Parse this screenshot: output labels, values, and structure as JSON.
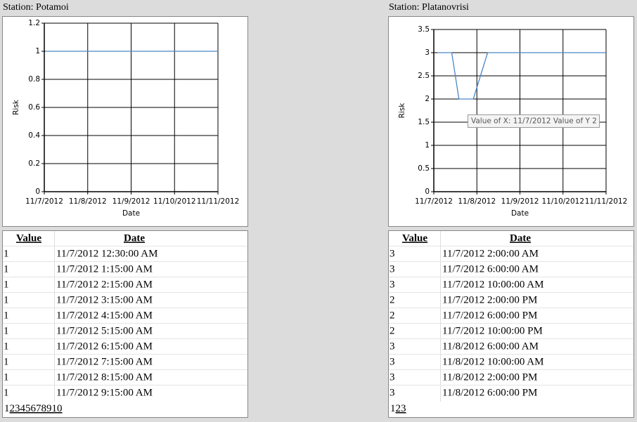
{
  "stations": [
    "Station: Potamoi",
    "Station: Platanovrisi"
  ],
  "chart_data": [
    {
      "type": "line",
      "xlabel": "Date",
      "ylabel": "Risk",
      "x": [
        "11/7/2012 12:30:00 AM",
        "11/11/2012"
      ],
      "values": [
        1,
        1
      ],
      "color": "#4a86c8",
      "xlim": [
        "11/7/2012",
        "11/11/2012"
      ],
      "xticks": [
        "11/7/2012",
        "11/8/2012",
        "11/9/2012",
        "11/10/2012",
        "11/11/2012"
      ],
      "ylim": [
        0,
        1.2
      ],
      "yticks": [
        0,
        0.2,
        0.4,
        0.6,
        0.8,
        1,
        1.2
      ],
      "grid": true
    },
    {
      "type": "line",
      "xlabel": "Date",
      "ylabel": "Risk",
      "x": [
        "11/7/2012 2:00:00 AM",
        "11/7/2012 6:00:00 AM",
        "11/7/2012 10:00:00 AM",
        "11/7/2012 2:00:00 PM",
        "11/7/2012 6:00:00 PM",
        "11/7/2012 10:00:00 PM",
        "11/8/2012 6:00:00 AM",
        "11/8/2012 10:00:00 AM",
        "11/8/2012 2:00:00 PM",
        "11/8/2012 6:00:00 PM",
        "11/11/2012"
      ],
      "values": [
        3,
        3,
        3,
        2,
        2,
        2,
        3,
        3,
        3,
        3,
        3
      ],
      "color": "#4a86c8",
      "xlim": [
        "11/7/2012",
        "11/11/2012"
      ],
      "xticks": [
        "11/7/2012",
        "11/8/2012",
        "11/9/2012",
        "11/10/2012",
        "11/11/2012"
      ],
      "ylim": [
        0,
        3.5
      ],
      "yticks": [
        0,
        0.5,
        1,
        1.5,
        2,
        2.5,
        3,
        3.5
      ],
      "grid": true,
      "annotation": "Value of X: 11/7/2012 Value of Y 2"
    }
  ],
  "tables": [
    {
      "header": [
        "Value",
        "Date"
      ],
      "rows": [
        [
          1,
          "11/7/2012 12:30:00 AM"
        ],
        [
          1,
          "11/7/2012 1:15:00 AM"
        ],
        [
          1,
          "11/7/2012 2:15:00 AM"
        ],
        [
          1,
          "11/7/2012 3:15:00 AM"
        ],
        [
          1,
          "11/7/2012 4:15:00 AM"
        ],
        [
          1,
          "11/7/2012 5:15:00 AM"
        ],
        [
          1,
          "11/7/2012 6:15:00 AM"
        ],
        [
          1,
          "11/7/2012 7:15:00 AM"
        ],
        [
          1,
          "11/7/2012 8:15:00 AM"
        ],
        [
          1,
          "11/7/2012 9:15:00 AM"
        ]
      ],
      "pages": [
        "1",
        "2",
        "3",
        "4",
        "5",
        "6",
        "7",
        "8",
        "9",
        "10"
      ]
    },
    {
      "header": [
        "Value",
        "Date"
      ],
      "rows": [
        [
          3,
          "11/7/2012 2:00:00 AM"
        ],
        [
          3,
          "11/7/2012 6:00:00 AM"
        ],
        [
          3,
          "11/7/2012 10:00:00 AM"
        ],
        [
          2,
          "11/7/2012 2:00:00 PM"
        ],
        [
          2,
          "11/7/2012 6:00:00 PM"
        ],
        [
          2,
          "11/7/2012 10:00:00 PM"
        ],
        [
          3,
          "11/8/2012 6:00:00 AM"
        ],
        [
          3,
          "11/8/2012 10:00:00 AM"
        ],
        [
          3,
          "11/8/2012 2:00:00 PM"
        ],
        [
          3,
          "11/8/2012 6:00:00 PM"
        ]
      ],
      "pages": [
        "1",
        "2",
        "3"
      ]
    }
  ]
}
